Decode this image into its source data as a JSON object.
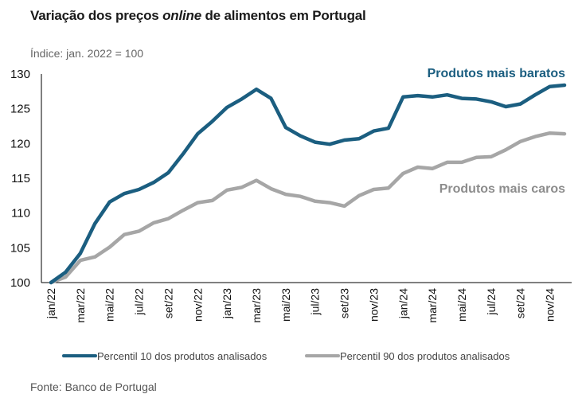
{
  "header": {
    "title_part1": "Variação dos preços ",
    "title_italic": "online",
    "title_part2": " de alimentos em Portugal",
    "subtitle": "Índice: jan. 2022 = 100"
  },
  "footer": {
    "source": "Fonte: Banco de Portugal"
  },
  "colors": {
    "p10": "#1b5e80",
    "p90": "#a6a6a6",
    "p10_label": "#1b5e80",
    "p90_label": "#8c8c8c"
  },
  "chart_data": {
    "type": "line",
    "title": "Variação dos preços online de alimentos em Portugal",
    "subtitle": "Índice: jan. 2022 = 100",
    "xlabel": "",
    "ylabel": "",
    "ylim": [
      100,
      130
    ],
    "yticks": [
      100,
      105,
      110,
      115,
      120,
      125,
      130
    ],
    "x": [
      "jan/22",
      "fev/22",
      "mar/22",
      "abr/22",
      "mai/22",
      "jun/22",
      "jul/22",
      "ago/22",
      "set/22",
      "out/22",
      "nov/22",
      "dez/22",
      "jan/23",
      "fev/23",
      "mar/23",
      "abr/23",
      "mai/23",
      "jun/23",
      "jul/23",
      "ago/23",
      "set/23",
      "out/23",
      "nov/23",
      "dez/23",
      "jan/24",
      "fev/24",
      "mar/24",
      "abr/24",
      "mai/24",
      "jun/24",
      "jul/24",
      "ago/24",
      "set/24",
      "out/24",
      "nov/24",
      "dez/24"
    ],
    "xtick_labels": [
      "jan/22",
      "mar/22",
      "mai/22",
      "jul/22",
      "set/22",
      "nov/22",
      "jan/23",
      "mar/23",
      "mai/23",
      "jul/23",
      "set/23",
      "nov/23",
      "jan/24",
      "mar/24",
      "mai/24",
      "jul/24",
      "set/24",
      "nov/24"
    ],
    "grid": false,
    "legend_position": "bottom",
    "series": [
      {
        "name": "Percentil 10 dos produtos analisados",
        "annotation": "Produtos mais baratos",
        "values": [
          100,
          101.5,
          104.2,
          108.5,
          111.6,
          112.8,
          113.4,
          114.4,
          115.8,
          118.5,
          121.4,
          123.2,
          125.2,
          126.4,
          127.8,
          126.5,
          122.3,
          121.1,
          120.2,
          119.9,
          120.5,
          120.7,
          121.8,
          122.2,
          126.7,
          126.9,
          126.7,
          127.0,
          126.5,
          126.4,
          126.0,
          125.3,
          125.7,
          127.0,
          128.2,
          128.4
        ]
      },
      {
        "name": "Percentil 90 dos produtos analisados",
        "annotation": "Produtos mais caros",
        "values": [
          100,
          100.8,
          103.2,
          103.7,
          105.1,
          106.9,
          107.4,
          108.6,
          109.2,
          110.4,
          111.5,
          111.8,
          113.3,
          113.7,
          114.7,
          113.5,
          112.7,
          112.4,
          111.7,
          111.5,
          111.0,
          112.5,
          113.4,
          113.6,
          115.7,
          116.6,
          116.4,
          117.3,
          117.3,
          118.0,
          118.1,
          119.1,
          120.3,
          121.0,
          121.5,
          121.4
        ]
      }
    ]
  }
}
